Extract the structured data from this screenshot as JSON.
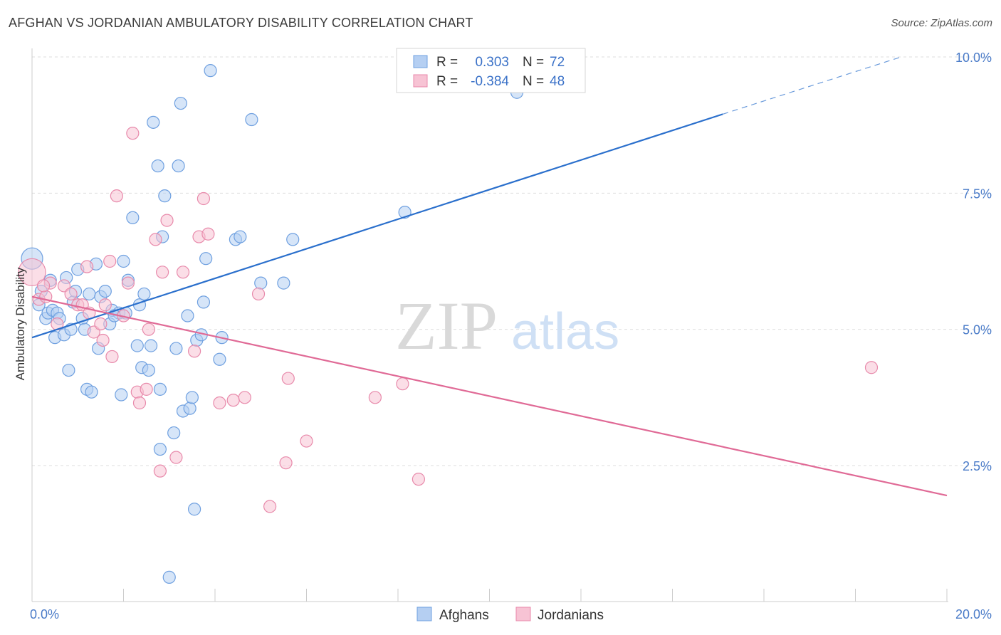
{
  "header": {
    "title": "AFGHAN VS JORDANIAN AMBULATORY DISABILITY CORRELATION CHART",
    "source": "Source: ZipAtlas.com"
  },
  "watermark": {
    "zip": "ZIP",
    "atlas": "atlas"
  },
  "chart_data": {
    "type": "scatter",
    "title": "AFGHAN VS JORDANIAN AMBULATORY DISABILITY CORRELATION CHART",
    "xlabel": "",
    "ylabel": "Ambulatory Disability",
    "xlim": [
      0,
      20
    ],
    "ylim": [
      0,
      10.5
    ],
    "x_tick_labels": [
      {
        "value": 0,
        "label": "0.0%"
      },
      {
        "value": 20,
        "label": "20.0%"
      }
    ],
    "y_tick_labels": [
      {
        "value": 2.5,
        "label": "2.5%"
      },
      {
        "value": 5.0,
        "label": "5.0%"
      },
      {
        "value": 7.5,
        "label": "7.5%"
      },
      {
        "value": 10.0,
        "label": "10.0%"
      }
    ],
    "grid": true,
    "legend_position": "top-center",
    "series": [
      {
        "name": "Afghans",
        "color": "#6fa0e0",
        "fill": "#b5cff2",
        "line_color": "#2a6fcc",
        "stats": {
          "r_label": "R =",
          "r": "0.303",
          "n_label": "N =",
          "n": "72"
        },
        "trend": {
          "x0": 0,
          "y0": 4.85,
          "x1": 15.1,
          "y1": 8.95,
          "dash_x1": 19.0,
          "dash_y1": 10.0
        },
        "points": [
          [
            0.0,
            6.3
          ],
          [
            0.15,
            5.45
          ],
          [
            0.2,
            5.7
          ],
          [
            0.3,
            5.2
          ],
          [
            0.35,
            5.3
          ],
          [
            0.4,
            5.9
          ],
          [
            0.45,
            5.35
          ],
          [
            0.5,
            4.85
          ],
          [
            0.55,
            5.3
          ],
          [
            0.7,
            4.9
          ],
          [
            0.75,
            5.95
          ],
          [
            0.8,
            4.25
          ],
          [
            0.85,
            5.0
          ],
          [
            0.9,
            5.5
          ],
          [
            0.95,
            5.7
          ],
          [
            1.0,
            6.1
          ],
          [
            1.1,
            5.2
          ],
          [
            1.15,
            5.0
          ],
          [
            1.2,
            3.9
          ],
          [
            1.3,
            3.85
          ],
          [
            1.25,
            5.65
          ],
          [
            1.4,
            6.2
          ],
          [
            1.45,
            4.65
          ],
          [
            1.5,
            5.6
          ],
          [
            1.6,
            5.7
          ],
          [
            1.7,
            5.1
          ],
          [
            1.75,
            5.35
          ],
          [
            1.9,
            5.3
          ],
          [
            1.95,
            3.8
          ],
          [
            2.0,
            6.25
          ],
          [
            2.05,
            5.3
          ],
          [
            2.1,
            5.9
          ],
          [
            2.2,
            7.05
          ],
          [
            2.3,
            4.7
          ],
          [
            2.35,
            5.45
          ],
          [
            2.4,
            4.3
          ],
          [
            2.45,
            5.65
          ],
          [
            2.55,
            4.25
          ],
          [
            2.6,
            4.7
          ],
          [
            2.65,
            8.8
          ],
          [
            2.75,
            8.0
          ],
          [
            2.8,
            3.9
          ],
          [
            2.85,
            6.7
          ],
          [
            2.9,
            7.45
          ],
          [
            3.0,
            0.45
          ],
          [
            3.1,
            3.1
          ],
          [
            3.15,
            4.65
          ],
          [
            3.2,
            8.0
          ],
          [
            3.25,
            9.15
          ],
          [
            3.3,
            3.5
          ],
          [
            3.4,
            5.25
          ],
          [
            3.45,
            3.55
          ],
          [
            3.5,
            3.75
          ],
          [
            3.55,
            1.7
          ],
          [
            3.6,
            4.8
          ],
          [
            3.7,
            4.9
          ],
          [
            3.8,
            6.3
          ],
          [
            3.75,
            5.5
          ],
          [
            3.9,
            9.75
          ],
          [
            4.1,
            4.45
          ],
          [
            4.15,
            4.85
          ],
          [
            4.45,
            6.65
          ],
          [
            4.55,
            6.7
          ],
          [
            4.8,
            8.85
          ],
          [
            5.0,
            5.85
          ],
          [
            5.5,
            5.85
          ],
          [
            5.7,
            6.65
          ],
          [
            8.15,
            7.15
          ],
          [
            10.6,
            9.35
          ],
          [
            2.8,
            2.8
          ],
          [
            1.8,
            5.25
          ],
          [
            0.6,
            5.2
          ]
        ]
      },
      {
        "name": "Jordanians",
        "color": "#e88aab",
        "fill": "#f7c3d4",
        "line_color": "#e06a96",
        "stats": {
          "r_label": "R =",
          "r": "-0.384",
          "n_label": "N =",
          "n": "48"
        },
        "trend": {
          "x0": 0,
          "y0": 5.6,
          "x1": 20.0,
          "y1": 1.95
        },
        "points": [
          [
            0.0,
            6.05
          ],
          [
            0.15,
            5.55
          ],
          [
            0.3,
            5.6
          ],
          [
            0.4,
            5.85
          ],
          [
            0.55,
            5.1
          ],
          [
            0.7,
            5.8
          ],
          [
            0.85,
            5.65
          ],
          [
            1.0,
            5.45
          ],
          [
            1.1,
            5.45
          ],
          [
            1.2,
            6.15
          ],
          [
            1.25,
            5.3
          ],
          [
            1.35,
            4.95
          ],
          [
            1.5,
            5.1
          ],
          [
            1.55,
            4.8
          ],
          [
            1.7,
            6.25
          ],
          [
            1.75,
            4.5
          ],
          [
            1.85,
            7.45
          ],
          [
            2.0,
            5.25
          ],
          [
            2.1,
            5.85
          ],
          [
            2.2,
            8.6
          ],
          [
            2.3,
            3.85
          ],
          [
            2.35,
            3.65
          ],
          [
            2.5,
            3.9
          ],
          [
            2.55,
            5.0
          ],
          [
            2.7,
            6.65
          ],
          [
            2.8,
            2.4
          ],
          [
            2.85,
            6.05
          ],
          [
            2.95,
            7.0
          ],
          [
            3.15,
            2.65
          ],
          [
            3.3,
            6.05
          ],
          [
            3.55,
            4.6
          ],
          [
            3.65,
            6.7
          ],
          [
            3.75,
            7.4
          ],
          [
            3.85,
            6.75
          ],
          [
            4.1,
            3.65
          ],
          [
            4.4,
            3.7
          ],
          [
            4.65,
            3.75
          ],
          [
            4.95,
            5.65
          ],
          [
            5.2,
            1.75
          ],
          [
            5.55,
            2.55
          ],
          [
            5.6,
            4.1
          ],
          [
            6.0,
            2.95
          ],
          [
            7.5,
            3.75
          ],
          [
            8.1,
            4.0
          ],
          [
            8.45,
            2.25
          ],
          [
            18.35,
            4.3
          ],
          [
            1.6,
            5.45
          ],
          [
            0.25,
            5.8
          ]
        ]
      }
    ]
  }
}
